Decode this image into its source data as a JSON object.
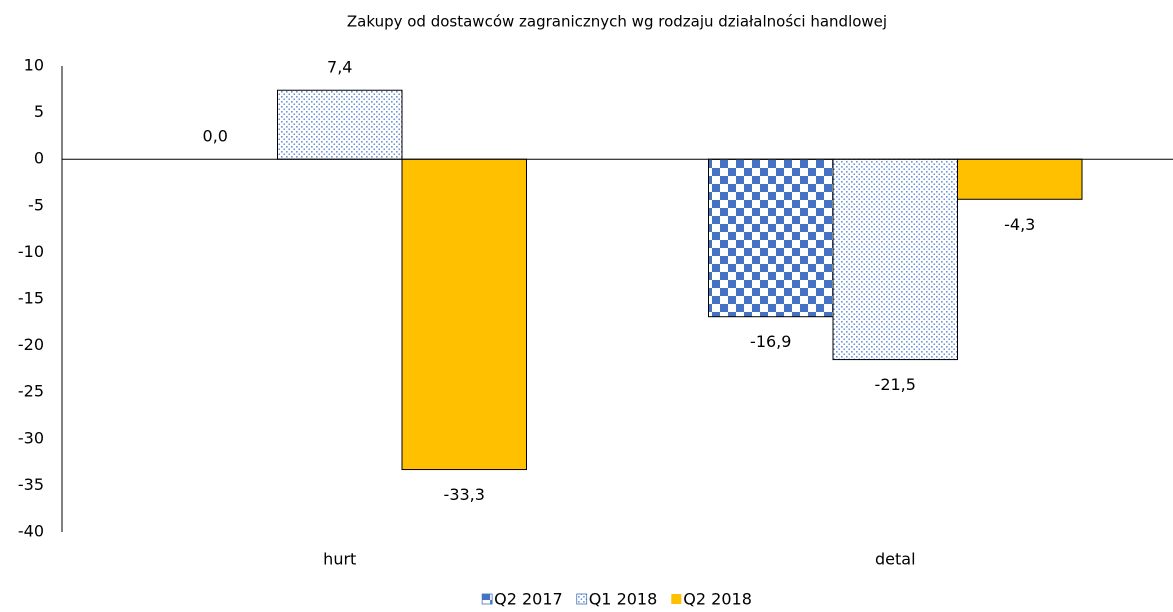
{
  "chart_data": {
    "type": "bar",
    "title": "Zakupy od dostawców zagranicznych wg rodzaju działalności handlowej",
    "categories": [
      "hurt",
      "detal"
    ],
    "series": [
      {
        "name": "Q2 2017",
        "color": "#4472c4",
        "pattern": "checker",
        "values": [
          0,
          -16.9
        ],
        "value_labels": [
          "0,0",
          "-16,9"
        ]
      },
      {
        "name": "Q1 2018",
        "color": "#4472c4",
        "pattern": "dots",
        "values": [
          7.4,
          -21.5
        ],
        "value_labels": [
          "7,4",
          "-21,5"
        ]
      },
      {
        "name": "Q2 2018",
        "color": "#ffc000",
        "pattern": "solid",
        "values": [
          -33.3,
          -4.3
        ],
        "value_labels": [
          "-33,3",
          "-4,3"
        ]
      }
    ],
    "ylim": [
      -40,
      10
    ],
    "yticks": [
      -40,
      -35,
      -30,
      -25,
      -20,
      -15,
      -10,
      -5,
      0,
      5,
      10
    ],
    "grid": false,
    "legend": "bottom"
  }
}
